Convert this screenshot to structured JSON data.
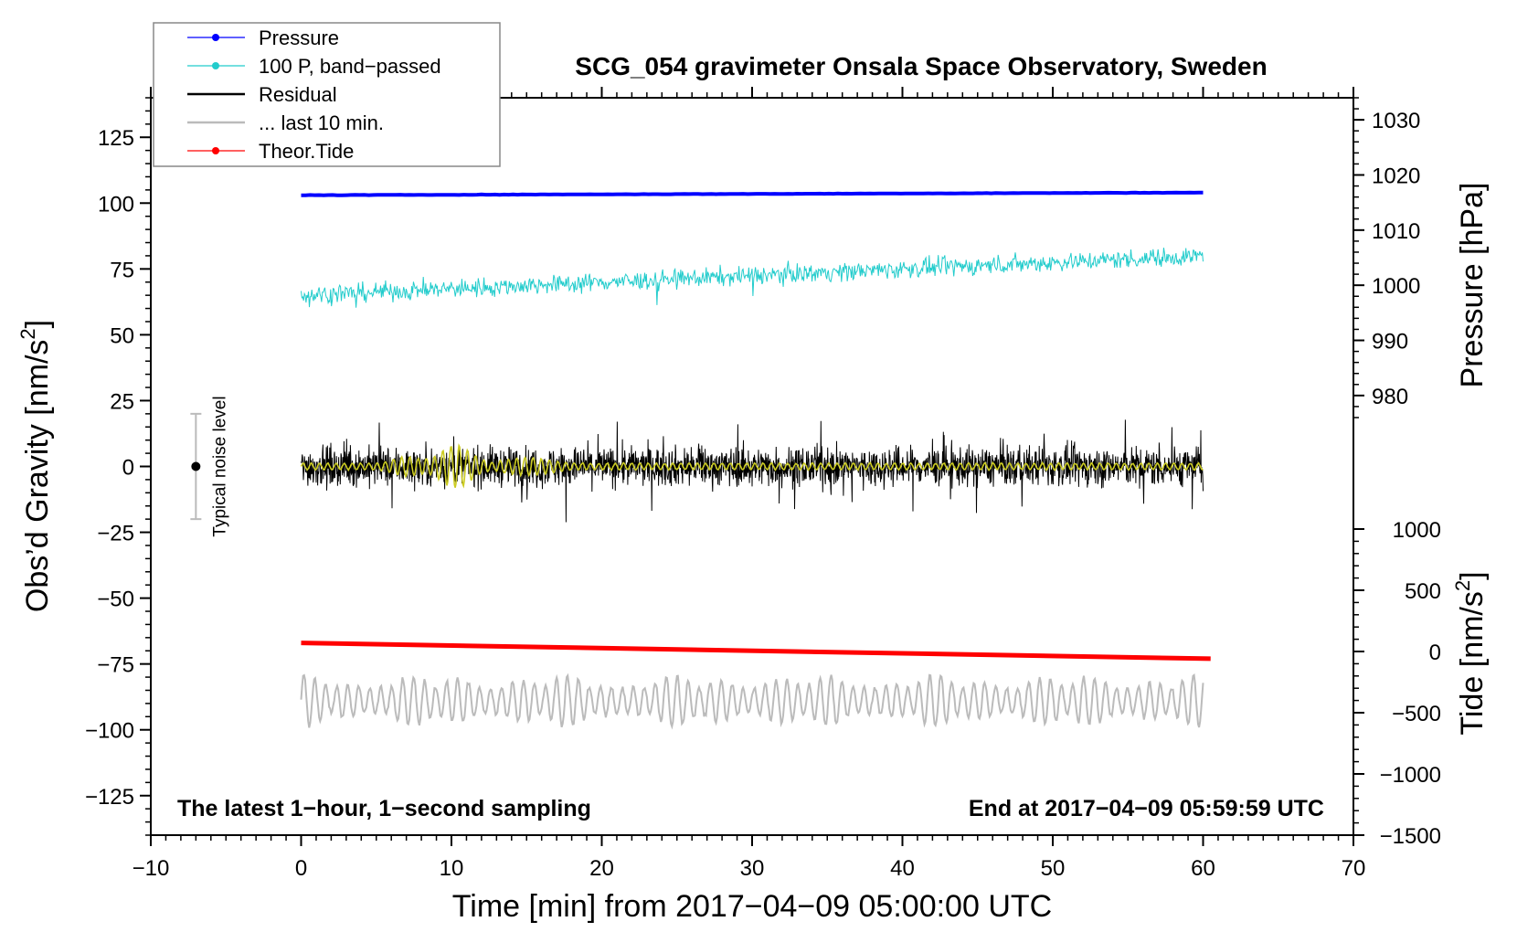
{
  "chart_data": {
    "type": "line",
    "title": "SCG_054 gravimeter Onsala Space Observatory, Sweden",
    "xlabel": "Time [min] from 2017−04−09 05:00:00 UTC",
    "ylabel_left": "Obs’d Gravity [nm/s",
    "ylabel_left_sup": "2",
    "ylabel_left_close": "]",
    "ylabel_right_pressure": "Pressure [hPa]",
    "ylabel_right_tide": "Tide [nm/s",
    "ylabel_right_tide_sup": "2",
    "ylabel_right_tide_close": "]",
    "xlim": [
      -10,
      70
    ],
    "ylim": [
      -140,
      140
    ],
    "xticks": [
      -10,
      0,
      10,
      20,
      30,
      40,
      50,
      60,
      70
    ],
    "xtick_labels": [
      "−10",
      "0",
      "10",
      "20",
      "30",
      "40",
      "50",
      "60",
      "70"
    ],
    "yticks": [
      125,
      100,
      75,
      50,
      25,
      0,
      -25,
      -50,
      -75,
      -100,
      -125
    ],
    "ytick_labels": [
      "125",
      "100",
      "75",
      "50",
      "25",
      "0",
      "−25",
      "−50",
      "−75",
      "−100",
      "−125"
    ],
    "pressure_axis": {
      "ticks": [
        1030,
        1020,
        1010,
        1000,
        990,
        980
      ],
      "tick_labels": [
        "1030",
        "1020",
        "1010",
        "1000",
        "990",
        "980"
      ],
      "range_hpa": [
        976,
        1034
      ]
    },
    "tide_axis": {
      "ticks": [
        1000,
        500,
        0,
        -500,
        -1000,
        -1500
      ],
      "tick_labels": [
        "1000",
        "500",
        "0",
        "−500",
        "−1000",
        "−1500"
      ],
      "range": [
        -1500,
        1000
      ]
    },
    "legend_position": "top-left",
    "legend": [
      {
        "label": "Pressure",
        "color": "#0000ff",
        "marker": true
      },
      {
        "label": "100 P, band−passed",
        "color": "#22cccc",
        "marker": true
      },
      {
        "label": "Residual",
        "color": "#000000",
        "marker": false
      },
      {
        "label": "... last 10 min.",
        "color": "#bbbbbb",
        "marker": false
      },
      {
        "label": "Theor.Tide",
        "color": "#ff0000",
        "marker": true
      }
    ],
    "series": [
      {
        "name": "Pressure",
        "color": "#0000ff",
        "x": [
          0,
          60
        ],
        "values_hpa": [
          1017.8,
          1018.3
        ],
        "display_on_gravity_axis": [
          103,
          104
        ]
      },
      {
        "name": "100 P, band−passed",
        "color": "#22cccc",
        "x": [
          0,
          60
        ],
        "trend": [
          65,
          80
        ],
        "noise_amplitude": 4
      },
      {
        "name": "Residual",
        "color": "#000000",
        "x": [
          0,
          60
        ],
        "center": 0,
        "noise_amplitude": 9
      },
      {
        "name": "... last 10 min.",
        "color": "#bbbbbb",
        "x": [
          0,
          60
        ],
        "center": -89,
        "oscillation_amplitude": 10
      },
      {
        "name": "Theor.Tide",
        "color": "#ff0000",
        "x": [
          0,
          60.5
        ],
        "values_tide": [
          50,
          -70
        ],
        "display_on_gravity_axis": [
          -67,
          -73
        ]
      }
    ],
    "noise_level": {
      "label": "Typical noise level",
      "x": -7,
      "center": 0,
      "range": [
        -20,
        20
      ]
    },
    "annotation_left": "The latest 1−hour, 1−second sampling",
    "annotation_right": "End at 2017−04−09 05:59:59 UTC",
    "grid": false,
    "colors": {
      "band_passed_residual": "#cccc22"
    }
  }
}
